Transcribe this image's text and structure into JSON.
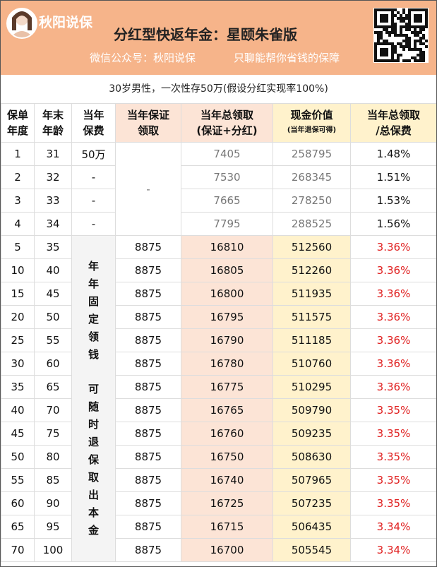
{
  "header": {
    "brand": "秋阳说保",
    "title": "分红型快返年金：星颐朱雀版",
    "subtitle": [
      "微信公众号：秋阳说保",
      "只聊能帮你省钱的保障"
    ]
  },
  "note": "30岁男性，一次性存50万(假设分红实现率100%)",
  "table": {
    "columns": [
      [
        "保单",
        "年度"
      ],
      [
        "年末",
        "年龄"
      ],
      [
        "当年",
        "保费"
      ],
      [
        "当年保证",
        "领取"
      ],
      [
        "当年总领取",
        "(保证+分红)"
      ],
      [
        "现金价值",
        "(当年退保可得)"
      ],
      [
        "当年总领取",
        "/总保费"
      ]
    ],
    "early_guarantee": "-",
    "premium_note": [
      "年年固定领钱",
      "可随时退保取出本金"
    ],
    "rows": [
      {
        "year": "1",
        "age": "31",
        "premium": "50万",
        "total": "7405",
        "cash": "258795",
        "ratio": "1.48%"
      },
      {
        "year": "2",
        "age": "32",
        "premium": "-",
        "total": "7530",
        "cash": "268345",
        "ratio": "1.51%"
      },
      {
        "year": "3",
        "age": "33",
        "premium": "-",
        "total": "7665",
        "cash": "278250",
        "ratio": "1.53%"
      },
      {
        "year": "4",
        "age": "34",
        "premium": "-",
        "total": "7795",
        "cash": "288525",
        "ratio": "1.56%"
      },
      {
        "year": "5",
        "age": "35",
        "guarantee": "8875",
        "total": "16810",
        "cash": "512560",
        "ratio": "3.36%"
      },
      {
        "year": "10",
        "age": "40",
        "guarantee": "8875",
        "total": "16805",
        "cash": "512260",
        "ratio": "3.36%"
      },
      {
        "year": "15",
        "age": "45",
        "guarantee": "8875",
        "total": "16800",
        "cash": "511935",
        "ratio": "3.36%"
      },
      {
        "year": "20",
        "age": "50",
        "guarantee": "8875",
        "total": "16795",
        "cash": "511575",
        "ratio": "3.36%"
      },
      {
        "year": "25",
        "age": "55",
        "guarantee": "8875",
        "total": "16790",
        "cash": "511185",
        "ratio": "3.36%"
      },
      {
        "year": "30",
        "age": "60",
        "guarantee": "8875",
        "total": "16780",
        "cash": "510760",
        "ratio": "3.36%"
      },
      {
        "year": "35",
        "age": "65",
        "guarantee": "8875",
        "total": "16775",
        "cash": "510295",
        "ratio": "3.36%"
      },
      {
        "year": "40",
        "age": "70",
        "guarantee": "8875",
        "total": "16765",
        "cash": "509790",
        "ratio": "3.35%"
      },
      {
        "year": "45",
        "age": "75",
        "guarantee": "8875",
        "total": "16760",
        "cash": "509235",
        "ratio": "3.35%"
      },
      {
        "year": "50",
        "age": "80",
        "guarantee": "8875",
        "total": "16750",
        "cash": "508630",
        "ratio": "3.35%"
      },
      {
        "year": "55",
        "age": "85",
        "guarantee": "8875",
        "total": "16740",
        "cash": "507965",
        "ratio": "3.35%"
      },
      {
        "year": "60",
        "age": "90",
        "guarantee": "8875",
        "total": "16725",
        "cash": "507235",
        "ratio": "3.35%"
      },
      {
        "year": "65",
        "age": "95",
        "guarantee": "8875",
        "total": "16715",
        "cash": "506435",
        "ratio": "3.34%"
      },
      {
        "year": "70",
        "age": "100",
        "guarantee": "8875",
        "total": "16700",
        "cash": "505545",
        "ratio": "3.34%"
      }
    ]
  }
}
